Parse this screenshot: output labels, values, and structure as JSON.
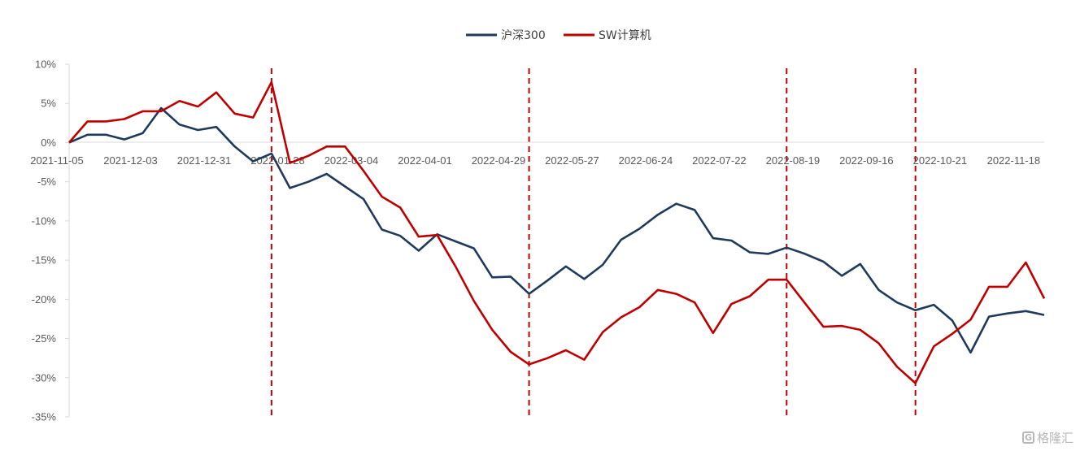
{
  "chart_data": {
    "type": "line",
    "title": "",
    "xlabel": "",
    "ylabel": "",
    "ylim": [
      -35,
      10
    ],
    "y_ticks": [
      10,
      5,
      0,
      -5,
      -10,
      -15,
      -20,
      -25,
      -30,
      -35
    ],
    "y_tick_format": "percent",
    "x_tick_labels": [
      "2021-11-05",
      "2021-12-03",
      "2021-12-31",
      "2022-01-28",
      "2022-03-04",
      "2022-04-01",
      "2022-04-29",
      "2022-05-27",
      "2022-06-24",
      "2022-07-22",
      "2022-08-19",
      "2022-09-16",
      "2022-10-21",
      "2022-11-18"
    ],
    "x_tick_index_step": 4,
    "legend_position": "top-center",
    "grid": false,
    "vertical_markers_index": [
      11,
      25,
      39,
      46
    ],
    "marker_color": "#C00000",
    "series": [
      {
        "name": "沪深300",
        "color": "#203A5C",
        "values": [
          0,
          1.0,
          1.0,
          0.4,
          1.2,
          4.4,
          2.3,
          1.6,
          2.0,
          -0.5,
          -2.4,
          -1.4,
          -5.8,
          -5.0,
          -4.0,
          -5.6,
          -7.2,
          -11.1,
          -11.9,
          -13.8,
          -11.7,
          -12.6,
          -13.5,
          -17.2,
          -17.1,
          -19.3,
          -17.6,
          -15.8,
          -17.4,
          -15.6,
          -12.4,
          -11.0,
          -9.2,
          -7.8,
          -8.6,
          -12.2,
          -12.5,
          -14.0,
          -14.2,
          -13.4,
          -14.2,
          -15.2,
          -17.0,
          -15.5,
          -18.8,
          -20.4,
          -21.4,
          -20.7,
          -22.7,
          -26.8,
          -22.2,
          -21.8,
          -21.5,
          -22.0
        ]
      },
      {
        "name": "SW计算机",
        "color": "#C00000",
        "values": [
          0,
          2.7,
          2.7,
          3.0,
          4.0,
          4.0,
          5.3,
          4.6,
          6.4,
          3.7,
          3.2,
          7.7,
          -2.6,
          -1.7,
          -0.5,
          -0.5,
          -3.6,
          -6.9,
          -8.3,
          -12.0,
          -11.8,
          -15.8,
          -20.2,
          -23.9,
          -26.7,
          -28.3,
          -27.5,
          -26.5,
          -27.7,
          -24.2,
          -22.3,
          -21.0,
          -18.8,
          -19.3,
          -20.4,
          -24.3,
          -20.6,
          -19.6,
          -17.5,
          -17.5,
          -20.5,
          -23.5,
          -23.4,
          -23.9,
          -25.6,
          -28.6,
          -30.7,
          -26.0,
          -24.4,
          -22.6,
          -18.4,
          -18.4,
          -15.3,
          -19.9
        ]
      }
    ]
  },
  "watermark": {
    "icon_glyph": "G",
    "text": "格隆汇"
  }
}
